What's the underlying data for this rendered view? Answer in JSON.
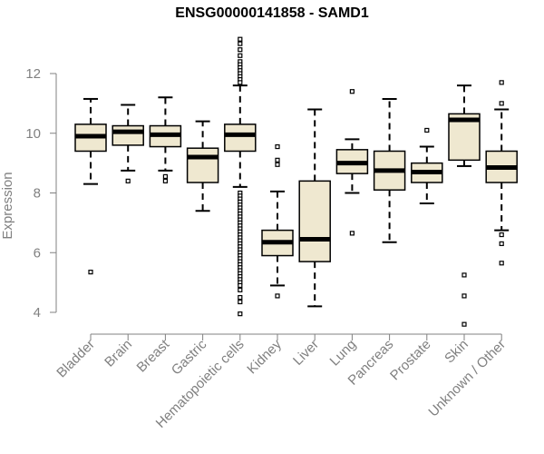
{
  "chart_data": {
    "type": "box",
    "title": "ENSG00000141858 - SAMD1",
    "xlabel": "",
    "ylabel": "Expression",
    "ylim": [
      3.6,
      13.2
    ],
    "yticks": [
      4,
      6,
      8,
      10,
      12
    ],
    "colors": {
      "box_fill": "#efe8d0",
      "stroke": "#000000",
      "axis": "#808080",
      "label": "#808080"
    },
    "categories": [
      "Bladder",
      "Brain",
      "Breast",
      "Gastric",
      "Hematopoietic cells",
      "Kidney",
      "Liver",
      "Lung",
      "Pancreas",
      "Prostate",
      "Skin",
      "Unknown / Other"
    ],
    "boxes": [
      {
        "label": "Bladder",
        "whisker_low": 8.3,
        "q1": 9.4,
        "median": 9.9,
        "q3": 10.3,
        "whisker_high": 11.15,
        "outliers": [
          5.35
        ]
      },
      {
        "label": "Brain",
        "whisker_low": 8.75,
        "q1": 9.6,
        "median": 10.05,
        "q3": 10.25,
        "whisker_high": 10.95,
        "outliers": [
          8.4
        ]
      },
      {
        "label": "Breast",
        "whisker_low": 8.75,
        "q1": 9.55,
        "median": 9.95,
        "q3": 10.25,
        "whisker_high": 11.2,
        "outliers": [
          8.55,
          8.4
        ]
      },
      {
        "label": "Gastric",
        "whisker_low": 7.4,
        "q1": 8.35,
        "median": 9.2,
        "q3": 9.5,
        "whisker_high": 10.4,
        "outliers": []
      },
      {
        "label": "Hematopoietic cells",
        "whisker_low": 8.2,
        "q1": 9.4,
        "median": 9.95,
        "q3": 10.3,
        "whisker_high": 11.6,
        "outliers": [
          13.15,
          13.0,
          12.8,
          12.6,
          12.4,
          12.3,
          12.2,
          12.1,
          12.0,
          11.9,
          11.8,
          11.7,
          8.0,
          7.9,
          7.8,
          7.7,
          7.6,
          7.5,
          7.4,
          7.3,
          7.2,
          7.1,
          7.0,
          6.9,
          6.8,
          6.7,
          6.6,
          6.5,
          6.4,
          6.3,
          6.2,
          6.1,
          6.0,
          5.9,
          5.8,
          5.7,
          5.6,
          5.5,
          5.4,
          5.3,
          5.2,
          5.1,
          5.0,
          4.9,
          4.75,
          4.5,
          4.35,
          3.95
        ]
      },
      {
        "label": "Kidney",
        "whisker_low": 4.9,
        "q1": 5.9,
        "median": 6.35,
        "q3": 6.75,
        "whisker_high": 8.05,
        "outliers": [
          9.55,
          9.1,
          8.95,
          4.55
        ]
      },
      {
        "label": "Liver",
        "whisker_low": 4.2,
        "q1": 5.7,
        "median": 6.45,
        "q3": 8.4,
        "whisker_high": 10.8,
        "outliers": []
      },
      {
        "label": "Lung",
        "whisker_low": 8.0,
        "q1": 8.65,
        "median": 9.0,
        "q3": 9.45,
        "whisker_high": 9.8,
        "outliers": [
          11.4,
          6.65
        ]
      },
      {
        "label": "Pancreas",
        "whisker_low": 6.35,
        "q1": 8.1,
        "median": 8.75,
        "q3": 9.4,
        "whisker_high": 11.15,
        "outliers": []
      },
      {
        "label": "Prostate",
        "whisker_low": 7.65,
        "q1": 8.35,
        "median": 8.7,
        "q3": 9.0,
        "whisker_high": 9.55,
        "outliers": [
          10.1
        ]
      },
      {
        "label": "Skin",
        "whisker_low": 8.9,
        "q1": 9.1,
        "median": 10.45,
        "q3": 10.65,
        "whisker_high": 11.6,
        "outliers": [
          5.25,
          4.55,
          3.6
        ]
      },
      {
        "label": "Unknown / Other",
        "whisker_low": 6.75,
        "q1": 8.35,
        "median": 8.85,
        "q3": 9.4,
        "whisker_high": 10.8,
        "outliers": [
          11.7,
          11.0,
          6.6,
          6.3,
          5.65
        ]
      }
    ]
  }
}
